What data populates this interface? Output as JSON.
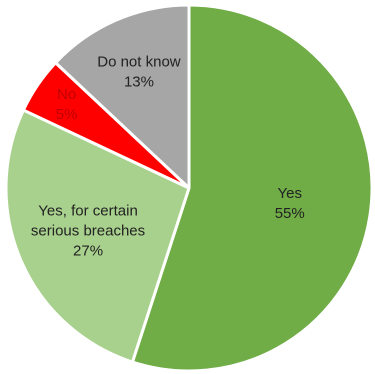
{
  "chart_data": {
    "type": "pie",
    "start_angle_deg": 0,
    "direction": "clockwise",
    "slices": [
      {
        "label": "Yes",
        "value": 55,
        "value_label": "55%",
        "color": "#70ad47",
        "text_color": "#222222"
      },
      {
        "label": "Yes, for certain serious breaches",
        "label_lines": [
          "Yes, for certain",
          "serious breaches"
        ],
        "value": 27,
        "value_label": "27%",
        "color": "#a9d18e",
        "text_color": "#222222"
      },
      {
        "label": "No",
        "value": 5,
        "value_label": "5%",
        "color": "#ff0000",
        "text_color": "#c00000"
      },
      {
        "label": "Do not know",
        "value": 13,
        "value_label": "13%",
        "color": "#a6a6a6",
        "text_color": "#222222"
      }
    ]
  }
}
